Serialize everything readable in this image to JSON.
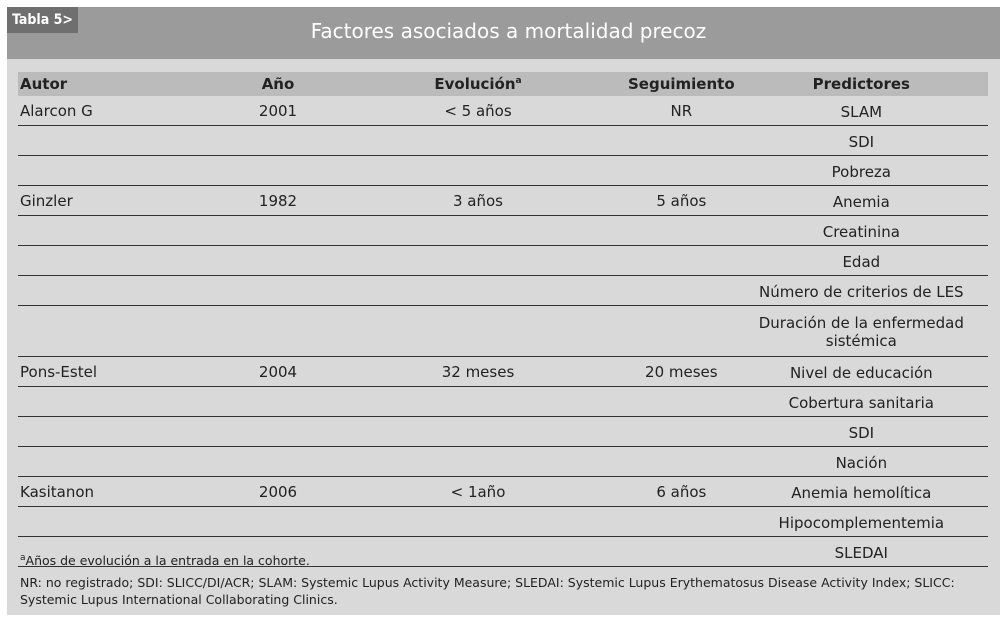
{
  "badge": "Tabla 5>",
  "title": "Factores asociados a mortalidad precoz",
  "columns": {
    "autor": "Autor",
    "anio": "Año",
    "evolucion": "Evolución",
    "evolucion_sup": "a",
    "seguimiento": "Seguimiento",
    "predictores": "Predictores"
  },
  "rows": [
    [
      "Alarcon G",
      "2001",
      "< 5 años",
      "NR",
      "SLAM"
    ],
    [
      "",
      "",
      "",
      "",
      "SDI"
    ],
    [
      "",
      "",
      "",
      "",
      "Pobreza"
    ],
    [
      "Ginzler",
      "1982",
      "3 años",
      "5 años",
      "Anemia"
    ],
    [
      "",
      "",
      "",
      "",
      "Creatinina"
    ],
    [
      "",
      "",
      "",
      "",
      "Edad"
    ],
    [
      "",
      "",
      "",
      "",
      "Número de criterios de LES"
    ],
    [
      "",
      "",
      "",
      "",
      "Duración de la enfermedad sistémica"
    ],
    [
      "Pons-Estel",
      "2004",
      "32 meses",
      "20 meses",
      "Nivel de educación"
    ],
    [
      "",
      "",
      "",
      "",
      "Cobertura sanitaria"
    ],
    [
      "",
      "",
      "",
      "",
      "SDI"
    ],
    [
      "",
      "",
      "",
      "",
      "Nación"
    ],
    [
      "Kasitanon",
      "2006",
      "< 1año",
      "6 años",
      "Anemia hemolítica"
    ],
    [
      "",
      "",
      "",
      "",
      "Hipocomplementemia"
    ],
    [
      "",
      "",
      "",
      "",
      "SLEDAI"
    ]
  ],
  "footnote_sup": "a",
  "footnote": "Años de evolución a la entrada en la cohorte.",
  "abbreviations": "NR: no registrado; SDI: SLICC/DI/ACR; SLAM: Systemic Lupus Activity Measure; SLEDAI: Systemic Lupus Erythematosus Disease Activity Index; SLICC: Systemic Lupus International Collaborating Clinics."
}
